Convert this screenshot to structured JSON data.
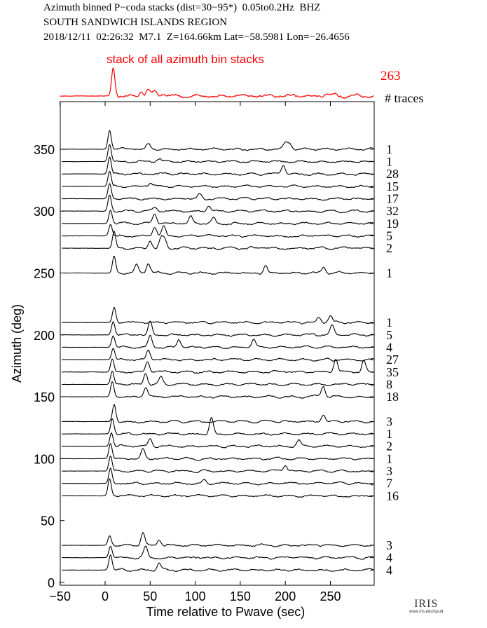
{
  "header": {
    "line1": "Azimuth binned P−coda stacks (dist=30−95*)  0.05to0.2Hz  BHZ",
    "line2": "SOUTH SANDWICH ISLANDS REGION",
    "line3": "2018/12/11  02:26:32  M7.1  Z=164.66km Lat=−58.5981 Lon=−26.4656"
  },
  "logo": {
    "name": "IRIS",
    "url_text": "www.iris.edu/spud"
  },
  "chart_data": {
    "type": "line",
    "xlabel": "Time relative to Pwave (sec)",
    "ylabel": "Azimuth (deg)",
    "xlim": [
      -50,
      298
    ],
    "ylim": [
      -2,
      389
    ],
    "xticks": [
      -50,
      0,
      50,
      100,
      150,
      200,
      250
    ],
    "xtick_labels": [
      "−50",
      "0",
      "50",
      "100",
      "150",
      "200",
      "250"
    ],
    "yticks": [
      0,
      50,
      100,
      150,
      200,
      250,
      300,
      350
    ],
    "ytick_labels": [
      "0",
      "50",
      "100",
      "150",
      "200",
      "250",
      "300",
      "350"
    ],
    "count_header": "# traces",
    "colors": {
      "stack": "#ff0000",
      "traces": "#000000"
    },
    "stack": {
      "label": "stack of all azimuth bin stacks",
      "count": "263",
      "p_time": 9,
      "p_amp": 1.0,
      "peaks": [
        [
          40,
          0.15
        ],
        [
          48,
          0.25
        ],
        [
          55,
          0.15
        ],
        [
          65,
          0.1
        ],
        [
          245,
          0.08
        ],
        [
          255,
          0.06
        ]
      ]
    },
    "traces": [
      {
        "azimuth": 350,
        "count": "1",
        "p_time": 5,
        "p_amp": 1.0,
        "peaks": [
          [
            48,
            0.3
          ],
          [
            200,
            0.35
          ],
          [
            205,
            0.3
          ]
        ]
      },
      {
        "azimuth": 340,
        "count": "1",
        "p_time": 5,
        "p_amp": 0.9,
        "peaks": [
          [
            60,
            0.15
          ]
        ]
      },
      {
        "azimuth": 330,
        "count": "28",
        "p_time": 5,
        "p_amp": 0.9,
        "peaks": [
          [
            198,
            0.5
          ]
        ]
      },
      {
        "azimuth": 320,
        "count": "15",
        "p_time": 5,
        "p_amp": 0.8,
        "peaks": [
          [
            50,
            0.15
          ]
        ]
      },
      {
        "azimuth": 310,
        "count": "17",
        "p_time": 5,
        "p_amp": 0.8,
        "peaks": [
          [
            105,
            0.25
          ]
        ]
      },
      {
        "azimuth": 300,
        "count": "32",
        "p_time": 5,
        "p_amp": 0.85,
        "peaks": [
          [
            115,
            0.3
          ],
          [
            55,
            0.2
          ]
        ]
      },
      {
        "azimuth": 290,
        "count": "19",
        "p_time": 6,
        "p_amp": 0.7,
        "peaks": [
          [
            55,
            0.5
          ],
          [
            95,
            0.35
          ],
          [
            120,
            0.3
          ]
        ]
      },
      {
        "azimuth": 280,
        "count": "5",
        "p_time": 6,
        "p_amp": 0.6,
        "peaks": [
          [
            55,
            0.5
          ],
          [
            65,
            0.5
          ]
        ]
      },
      {
        "azimuth": 270,
        "count": "2",
        "p_time": 10,
        "p_amp": 0.9,
        "peaks": [
          [
            50,
            0.4
          ],
          [
            62,
            0.5
          ],
          [
            66,
            0.45
          ]
        ]
      },
      {
        "azimuth": 250,
        "count": "1",
        "p_time": 10,
        "p_amp": 0.9,
        "peaks": [
          [
            35,
            0.4
          ],
          [
            48,
            0.5
          ],
          [
            178,
            0.4
          ],
          [
            243,
            0.3
          ]
        ]
      },
      {
        "azimuth": 210,
        "count": "1",
        "p_time": 10,
        "p_amp": 0.8,
        "peaks": [
          [
            237,
            0.3
          ],
          [
            250,
            0.35
          ]
        ]
      },
      {
        "azimuth": 200,
        "count": "5",
        "p_time": 9,
        "p_amp": 0.7,
        "peaks": [
          [
            50,
            0.7
          ],
          [
            252,
            0.5
          ]
        ]
      },
      {
        "azimuth": 190,
        "count": "4",
        "p_time": 9,
        "p_amp": 0.6,
        "peaks": [
          [
            50,
            0.6
          ],
          [
            82,
            0.4
          ],
          [
            165,
            0.4
          ]
        ]
      },
      {
        "azimuth": 180,
        "count": "27",
        "p_time": 9,
        "p_amp": 0.6,
        "peaks": [
          [
            48,
            0.5
          ]
        ]
      },
      {
        "azimuth": 170,
        "count": "35",
        "p_time": 8,
        "p_amp": 0.7,
        "peaks": [
          [
            47,
            0.6
          ],
          [
            256,
            0.7
          ],
          [
            287,
            0.6
          ]
        ]
      },
      {
        "azimuth": 160,
        "count": "8",
        "p_time": 8,
        "p_amp": 0.7,
        "peaks": [
          [
            45,
            0.6
          ],
          [
            62,
            0.4
          ]
        ]
      },
      {
        "azimuth": 150,
        "count": "18",
        "p_time": 8,
        "p_amp": 0.8,
        "peaks": [
          [
            45,
            0.5
          ],
          [
            242,
            0.6
          ]
        ]
      },
      {
        "azimuth": 130,
        "count": "3",
        "p_time": 10,
        "p_amp": 0.9,
        "peaks": [
          [
            242,
            0.4
          ]
        ]
      },
      {
        "azimuth": 120,
        "count": "1",
        "p_time": 8,
        "p_amp": 0.8,
        "peaks": [
          [
            118,
            0.9
          ]
        ]
      },
      {
        "azimuth": 110,
        "count": "2",
        "p_time": 7,
        "p_amp": 0.7,
        "peaks": [
          [
            50,
            0.4
          ],
          [
            215,
            0.3
          ]
        ]
      },
      {
        "azimuth": 100,
        "count": "1",
        "p_time": 6,
        "p_amp": 0.8,
        "peaks": [
          [
            42,
            0.5
          ]
        ]
      },
      {
        "azimuth": 90,
        "count": "3",
        "p_time": 6,
        "p_amp": 0.8,
        "peaks": [
          [
            200,
            0.3
          ]
        ]
      },
      {
        "azimuth": 80,
        "count": "7",
        "p_time": 6,
        "p_amp": 0.8,
        "peaks": [
          [
            110,
            0.2
          ]
        ]
      },
      {
        "azimuth": 70,
        "count": "16",
        "p_time": 5,
        "p_amp": 0.9,
        "peaks": []
      },
      {
        "azimuth": 30,
        "count": "3",
        "p_time": 5,
        "p_amp": 0.5,
        "peaks": [
          [
            42,
            0.7
          ],
          [
            60,
            0.3
          ]
        ]
      },
      {
        "azimuth": 20,
        "count": "4",
        "p_time": 6,
        "p_amp": 0.6,
        "peaks": [
          [
            45,
            0.6
          ]
        ]
      },
      {
        "azimuth": 10,
        "count": "4",
        "p_time": 6,
        "p_amp": 0.8,
        "peaks": [
          [
            60,
            0.4
          ]
        ]
      }
    ]
  }
}
